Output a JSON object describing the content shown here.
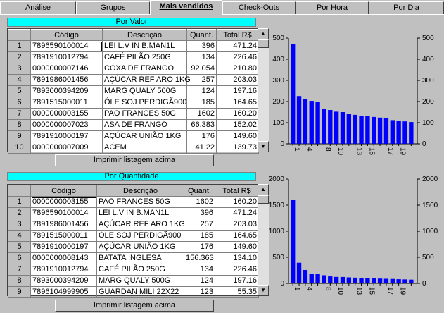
{
  "tabs": [
    "Análise",
    "Grupos",
    "Mais vendidos",
    "Check-Outs",
    "Por Hora",
    "Por Dia"
  ],
  "active_tab": "Mais vendidos",
  "top": {
    "header": "Por Valor",
    "columns": [
      "",
      "Código",
      "Descrição",
      "Quant.",
      "Total R$"
    ],
    "rows": [
      [
        "1",
        "7896590100014",
        "LEI L.V IN B.MAN1L",
        "396",
        "471.24"
      ],
      [
        "2",
        "7891910012794",
        "CAFÉ PILÃO 250G",
        "134",
        "226.46"
      ],
      [
        "3",
        "0000000007146",
        "COXA DE FRANGO",
        "92.054",
        "210.80"
      ],
      [
        "4",
        "7891986001456",
        "AÇÚCAR REF ARO 1KG",
        "257",
        "203.03"
      ],
      [
        "5",
        "7893000394209",
        "MARG QUALY 500G",
        "124",
        "197.16"
      ],
      [
        "6",
        "7891515000011",
        "ÓLE SOJ PERDIGÃ900",
        "185",
        "164.65"
      ],
      [
        "7",
        "0000000003155",
        "PAO FRANCES 50G",
        "1602",
        "160.20"
      ],
      [
        "8",
        "0000000007023",
        "ASA DE FRANGO",
        "66.383",
        "152.02"
      ],
      [
        "9",
        "7891910000197",
        "AÇÚCAR UNIÃO 1KG",
        "176",
        "149.60"
      ],
      [
        "10",
        "0000000007009",
        "ACEM",
        "41.22",
        "139.73"
      ]
    ],
    "button": "Imprimir listagem acima"
  },
  "bottom": {
    "header": "Por Quantidade",
    "columns": [
      "",
      "Código",
      "Descrição",
      "Quant.",
      "Total R$"
    ],
    "rows": [
      [
        "1",
        "0000000003155",
        "PAO FRANCES 50G",
        "1602",
        "160.20"
      ],
      [
        "2",
        "7896590100014",
        "LEI L.V IN B.MAN1L",
        "396",
        "471.24"
      ],
      [
        "3",
        "7891986001456",
        "AÇÚCAR REF ARO 1KG",
        "257",
        "203.03"
      ],
      [
        "4",
        "7891515000011",
        "ÓLE SOJ PERDIGÃ900",
        "185",
        "164.65"
      ],
      [
        "5",
        "7891910000197",
        "AÇÚCAR UNIÃO 1KG",
        "176",
        "149.60"
      ],
      [
        "6",
        "0000000008143",
        "BATATA INGLESA",
        "156.363",
        "134.10"
      ],
      [
        "7",
        "7891910012794",
        "CAFÉ PILÃO 250G",
        "134",
        "226.46"
      ],
      [
        "8",
        "7893000394209",
        "MARG QUALY 500G",
        "124",
        "197.16"
      ],
      [
        "9",
        "7896104999905",
        "GUARDAN MILI 22X22",
        "123",
        "55.35"
      ]
    ],
    "button": "Imprimir listagem acima"
  },
  "chart_data": [
    {
      "type": "bar",
      "title": "",
      "bar_color": "#0000ff",
      "ylim": [
        0,
        500
      ],
      "yticks": [
        0,
        100,
        200,
        300,
        400,
        500
      ],
      "categories": [
        "1",
        "2",
        "3",
        "4",
        "5",
        "6",
        "7",
        "8",
        "9",
        "10",
        "11",
        "12",
        "13",
        "14",
        "15",
        "16",
        "17",
        "18",
        "19",
        "20"
      ],
      "xtick_labels": [
        "1",
        "",
        "4",
        "",
        "",
        "8",
        "",
        "10",
        "",
        "",
        "13",
        "",
        "15",
        "",
        "",
        "17",
        "",
        "19",
        "",
        ""
      ],
      "values": [
        471,
        226,
        211,
        203,
        197,
        165,
        160,
        152,
        150,
        140,
        137,
        133,
        130,
        127,
        124,
        120,
        112,
        108,
        106,
        103
      ]
    },
    {
      "type": "bar",
      "title": "",
      "bar_color": "#0000ff",
      "ylim": [
        0,
        2000
      ],
      "yticks": [
        0,
        500,
        1000,
        1500,
        2000
      ],
      "categories": [
        "1",
        "2",
        "3",
        "4",
        "5",
        "6",
        "7",
        "8",
        "9",
        "10",
        "11",
        "12",
        "13",
        "14",
        "15",
        "16",
        "17",
        "18",
        "19",
        "20"
      ],
      "xtick_labels": [
        "1",
        "",
        "4",
        "",
        "",
        "8",
        "",
        "10",
        "",
        "",
        "13",
        "",
        "15",
        "",
        "",
        "17",
        "",
        "19",
        "",
        ""
      ],
      "values": [
        1602,
        396,
        257,
        185,
        176,
        156,
        134,
        124,
        123,
        115,
        110,
        105,
        100,
        96,
        92,
        88,
        85,
        80,
        76,
        72
      ]
    }
  ]
}
